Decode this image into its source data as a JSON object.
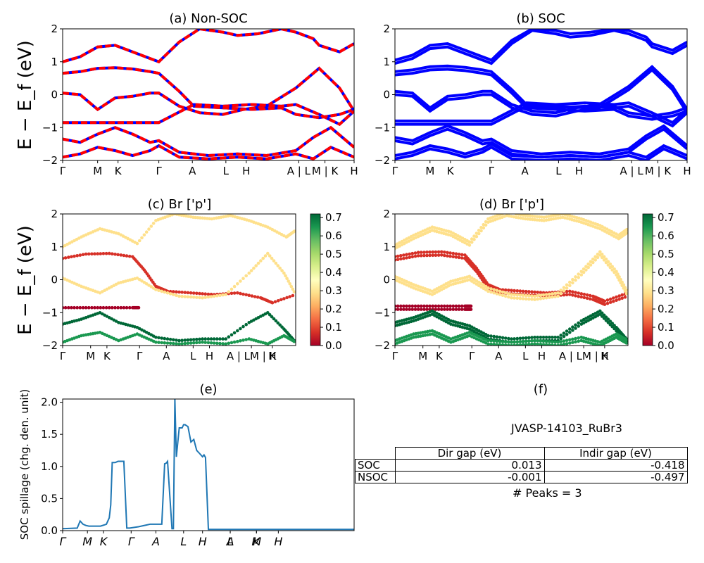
{
  "figure": {
    "ylabel_bands": "E − E_f (eV)",
    "kpath_labels": [
      "Γ",
      "M",
      "K",
      "Γ",
      "A",
      "L",
      "H",
      "A | L",
      "M | K",
      "H"
    ],
    "kpath_labels_c": [
      "Γ",
      "M",
      "K",
      "Γ",
      "A",
      "L",
      "H",
      "A | LM | K",
      "H"
    ],
    "kpath_labels_e": [
      "Γ",
      "M",
      "K",
      "Γ",
      "A",
      "L",
      "H",
      "A",
      "L",
      "M",
      "K",
      "H"
    ]
  },
  "panels": {
    "a": {
      "title": "(a) Non-SOC"
    },
    "b": {
      "title": "(b) SOC"
    },
    "c": {
      "title": "(c)  Br ['p']"
    },
    "d": {
      "title": "(d) Br ['p']"
    },
    "e": {
      "title": "(e)",
      "ylabel": "SOC spillage (chg. den. unit)"
    },
    "f": {
      "title": "(f)"
    }
  },
  "colors": {
    "nsoc_red": "#ff0000",
    "soc_blue": "#0000ff",
    "line": "#1f77b4"
  },
  "colorbar": {
    "ticks": [
      "0.0",
      "0.1",
      "0.2",
      "0.3",
      "0.4",
      "0.5",
      "0.6",
      "0.7"
    ],
    "colormap": "RdYlGn"
  },
  "info": {
    "material": "JVASP-14103_RuBr3",
    "table": {
      "headers": [
        "Dir gap (eV)",
        "Indir gap (eV)"
      ],
      "rows": [
        {
          "label": "SOC",
          "dir": "0.013",
          "indir": "-0.418"
        },
        {
          "label": "NSOC",
          "dir": "-0.001",
          "indir": "-0.497"
        }
      ]
    },
    "peaks": "# Peaks = 3"
  },
  "chart_data": [
    {
      "type": "line",
      "panel": "a",
      "ylim": [
        -2,
        2
      ],
      "yticks": [
        "−2",
        "−1",
        "0",
        "1",
        "2"
      ],
      "series": [
        {
          "name": "",
          "x": [
            0,
            0.06,
            0.12,
            0.18,
            0.24,
            0.3,
            0.33,
            0.4,
            0.47,
            0.55,
            0.6,
            0.67,
            0.75,
            0.8,
            0.86,
            0.88,
            0.95,
            1.0
          ],
          "y": [
            1.0,
            1.15,
            1.45,
            1.5,
            1.3,
            1.1,
            1.0,
            1.6,
            2.0,
            1.9,
            1.8,
            1.85,
            2.0,
            1.9,
            1.7,
            1.5,
            1.3,
            1.55
          ]
        },
        {
          "name": "",
          "x": [
            0,
            0.06,
            0.12,
            0.18,
            0.24,
            0.3,
            0.33,
            0.4,
            0.45,
            0.55,
            0.65,
            0.75,
            0.8,
            0.88,
            0.95,
            1.0
          ],
          "y": [
            0.65,
            0.7,
            0.8,
            0.82,
            0.78,
            0.7,
            0.65,
            0.1,
            -0.35,
            -0.4,
            -0.45,
            -0.4,
            -0.6,
            -0.7,
            -0.6,
            -0.45
          ]
        },
        {
          "name": "",
          "x": [
            0,
            0.06,
            0.12,
            0.18,
            0.24,
            0.3,
            0.33,
            0.4,
            0.47,
            0.55,
            0.62,
            0.7,
            0.8,
            0.88,
            0.95,
            1.0
          ],
          "y": [
            0.05,
            0.0,
            -0.45,
            -0.1,
            -0.05,
            0.05,
            0.05,
            -0.35,
            -0.55,
            -0.6,
            -0.45,
            -0.35,
            0.2,
            0.8,
            0.2,
            -0.5
          ]
        },
        {
          "name": "",
          "x": [
            0,
            0.1,
            0.2,
            0.3,
            0.33,
            0.45,
            0.55,
            0.65,
            0.75,
            0.8,
            0.88,
            0.95,
            1.0
          ],
          "y": [
            -0.85,
            -0.85,
            -0.85,
            -0.85,
            -0.85,
            -0.3,
            -0.35,
            -0.3,
            -0.35,
            -0.3,
            -0.6,
            -0.9,
            -0.5
          ]
        },
        {
          "name": "",
          "x": [
            0,
            0.06,
            0.12,
            0.18,
            0.24,
            0.3,
            0.33,
            0.4,
            0.5,
            0.6,
            0.7,
            0.8,
            0.86,
            0.92,
            1.0
          ],
          "y": [
            -1.35,
            -1.45,
            -1.2,
            -1.0,
            -1.2,
            -1.45,
            -1.4,
            -1.75,
            -1.85,
            -1.8,
            -1.85,
            -1.7,
            -1.3,
            -1.0,
            -1.6
          ]
        },
        {
          "name": "",
          "x": [
            0,
            0.06,
            0.12,
            0.18,
            0.24,
            0.3,
            0.33,
            0.4,
            0.5,
            0.6,
            0.7,
            0.8,
            0.86,
            0.92,
            1.0
          ],
          "y": [
            -1.9,
            -1.8,
            -1.6,
            -1.7,
            -1.85,
            -1.7,
            -1.55,
            -1.9,
            -1.95,
            -1.9,
            -1.95,
            -1.8,
            -1.95,
            -1.6,
            -1.9
          ]
        }
      ]
    },
    {
      "type": "line",
      "panel": "b",
      "ylim": [
        -2,
        2
      ],
      "yticks": [
        "−2",
        "−1",
        "0",
        "1",
        "2"
      ],
      "series": [
        {
          "name": "",
          "x": [
            0,
            0.06,
            0.12,
            0.18,
            0.24,
            0.3,
            0.33,
            0.4,
            0.47,
            0.55,
            0.6,
            0.67,
            0.75,
            0.8,
            0.86,
            0.88,
            0.95,
            1.0
          ],
          "y": [
            1.0,
            1.15,
            1.45,
            1.5,
            1.3,
            1.1,
            1.0,
            1.6,
            2.0,
            1.9,
            1.8,
            1.85,
            2.0,
            1.9,
            1.7,
            1.5,
            1.3,
            1.55
          ]
        },
        {
          "name": "",
          "x": [
            0,
            0.06,
            0.12,
            0.18,
            0.24,
            0.3,
            0.33,
            0.4,
            0.45,
            0.55,
            0.65,
            0.75,
            0.8,
            0.88,
            0.95,
            1.0
          ],
          "y": [
            0.65,
            0.7,
            0.8,
            0.82,
            0.78,
            0.7,
            0.65,
            0.1,
            -0.35,
            -0.4,
            -0.45,
            -0.4,
            -0.6,
            -0.7,
            -0.6,
            -0.45
          ]
        },
        {
          "name": "",
          "x": [
            0,
            0.06,
            0.12,
            0.18,
            0.24,
            0.3,
            0.33,
            0.4,
            0.47,
            0.55,
            0.62,
            0.7,
            0.8,
            0.88,
            0.95,
            1.0
          ],
          "y": [
            0.05,
            0.0,
            -0.45,
            -0.1,
            -0.05,
            0.05,
            0.05,
            -0.35,
            -0.55,
            -0.6,
            -0.45,
            -0.35,
            0.2,
            0.8,
            0.2,
            -0.5
          ]
        },
        {
          "name": "",
          "x": [
            0,
            0.1,
            0.2,
            0.3,
            0.33,
            0.45,
            0.55,
            0.65,
            0.75,
            0.8,
            0.88,
            0.95,
            1.0
          ],
          "y": [
            -0.85,
            -0.85,
            -0.85,
            -0.85,
            -0.85,
            -0.3,
            -0.35,
            -0.3,
            -0.35,
            -0.3,
            -0.6,
            -0.9,
            -0.5
          ]
        },
        {
          "name": "",
          "x": [
            0,
            0.06,
            0.12,
            0.18,
            0.24,
            0.3,
            0.33,
            0.4,
            0.5,
            0.6,
            0.7,
            0.8,
            0.86,
            0.92,
            1.0
          ],
          "y": [
            -1.35,
            -1.45,
            -1.2,
            -1.0,
            -1.2,
            -1.45,
            -1.4,
            -1.75,
            -1.85,
            -1.8,
            -1.85,
            -1.7,
            -1.3,
            -1.0,
            -1.6
          ]
        },
        {
          "name": "",
          "x": [
            0,
            0.06,
            0.12,
            0.18,
            0.24,
            0.3,
            0.33,
            0.4,
            0.5,
            0.6,
            0.7,
            0.8,
            0.86,
            0.92,
            1.0
          ],
          "y": [
            -1.9,
            -1.8,
            -1.6,
            -1.7,
            -1.85,
            -1.7,
            -1.55,
            -1.9,
            -1.95,
            -1.9,
            -1.95,
            -1.8,
            -1.95,
            -1.6,
            -1.9
          ]
        }
      ]
    },
    {
      "type": "scatter",
      "panel": "c",
      "ylim": [
        -2,
        2
      ],
      "yticks": [
        "−2",
        "−1",
        "0",
        "1",
        "2"
      ],
      "colorbar_range": [
        0.0,
        0.7
      ],
      "series": [
        {
          "name": "",
          "weight": 0.3,
          "x": [
            0,
            0.08,
            0.16,
            0.24,
            0.32,
            0.4,
            0.48,
            0.56,
            0.64,
            0.72,
            0.8,
            0.88,
            0.96,
            1.0
          ],
          "y": [
            1.0,
            1.3,
            1.55,
            1.4,
            1.1,
            1.8,
            2.0,
            1.9,
            1.85,
            1.95,
            1.8,
            1.6,
            1.3,
            1.5
          ]
        },
        {
          "name": "",
          "weight": 0.1,
          "x": [
            0,
            0.1,
            0.2,
            0.3,
            0.35,
            0.4,
            0.45,
            0.55,
            0.65,
            0.75,
            0.85,
            0.9,
            1.0
          ],
          "y": [
            0.65,
            0.78,
            0.8,
            0.7,
            0.3,
            -0.2,
            -0.35,
            -0.4,
            -0.45,
            -0.4,
            -0.55,
            -0.7,
            -0.45
          ]
        },
        {
          "name": "",
          "weight": 0.28,
          "x": [
            0,
            0.08,
            0.16,
            0.24,
            0.32,
            0.4,
            0.5,
            0.6,
            0.7,
            0.8,
            0.88,
            0.95,
            1.0
          ],
          "y": [
            0.05,
            -0.2,
            -0.4,
            -0.1,
            0.05,
            -0.3,
            -0.5,
            -0.55,
            -0.45,
            0.2,
            0.8,
            0.2,
            -0.45
          ]
        },
        {
          "name": "",
          "weight": 0.02,
          "x": [
            0,
            0.1,
            0.2,
            0.3,
            0.33
          ],
          "y": [
            -0.85,
            -0.85,
            -0.85,
            -0.85,
            -0.85
          ]
        },
        {
          "name": "",
          "weight": 0.68,
          "x": [
            0,
            0.08,
            0.16,
            0.24,
            0.32,
            0.4,
            0.5,
            0.6,
            0.7,
            0.8,
            0.88,
            0.95,
            1.0
          ],
          "y": [
            -1.35,
            -1.2,
            -1.0,
            -1.3,
            -1.45,
            -1.75,
            -1.85,
            -1.8,
            -1.8,
            -1.3,
            -1.0,
            -1.5,
            -1.9
          ]
        },
        {
          "name": "",
          "weight": 0.62,
          "x": [
            0,
            0.08,
            0.16,
            0.24,
            0.32,
            0.4,
            0.5,
            0.6,
            0.7,
            0.8,
            0.88,
            0.95,
            1.0
          ],
          "y": [
            -1.9,
            -1.7,
            -1.6,
            -1.85,
            -1.65,
            -1.9,
            -1.95,
            -1.9,
            -1.95,
            -1.8,
            -1.95,
            -1.7,
            -1.9
          ]
        }
      ]
    },
    {
      "type": "scatter",
      "panel": "d",
      "ylim": [
        -2,
        2
      ],
      "yticks": [
        "−2",
        "−1",
        "0",
        "1",
        "2"
      ],
      "colorbar_range": [
        0.0,
        0.7
      ],
      "series": [
        {
          "name": "",
          "weight": 0.3,
          "x": [
            0,
            0.08,
            0.16,
            0.24,
            0.32,
            0.4,
            0.48,
            0.56,
            0.64,
            0.72,
            0.8,
            0.88,
            0.96,
            1.0
          ],
          "y": [
            1.0,
            1.3,
            1.55,
            1.4,
            1.1,
            1.8,
            2.0,
            1.9,
            1.85,
            1.95,
            1.8,
            1.6,
            1.3,
            1.5
          ]
        },
        {
          "name": "",
          "weight": 0.1,
          "x": [
            0,
            0.1,
            0.2,
            0.3,
            0.35,
            0.4,
            0.45,
            0.55,
            0.65,
            0.75,
            0.85,
            0.9,
            1.0
          ],
          "y": [
            0.65,
            0.78,
            0.8,
            0.7,
            0.3,
            -0.2,
            -0.35,
            -0.4,
            -0.45,
            -0.4,
            -0.55,
            -0.7,
            -0.45
          ]
        },
        {
          "name": "",
          "weight": 0.28,
          "x": [
            0,
            0.08,
            0.16,
            0.24,
            0.32,
            0.4,
            0.5,
            0.6,
            0.7,
            0.8,
            0.88,
            0.95,
            1.0
          ],
          "y": [
            0.05,
            -0.2,
            -0.4,
            -0.1,
            0.05,
            -0.3,
            -0.5,
            -0.55,
            -0.45,
            0.2,
            0.8,
            0.2,
            -0.45
          ]
        },
        {
          "name": "",
          "weight": 0.02,
          "x": [
            0,
            0.1,
            0.2,
            0.3,
            0.33
          ],
          "y": [
            -0.85,
            -0.85,
            -0.85,
            -0.85,
            -0.85
          ]
        },
        {
          "name": "",
          "weight": 0.68,
          "x": [
            0,
            0.08,
            0.16,
            0.24,
            0.32,
            0.4,
            0.5,
            0.6,
            0.7,
            0.8,
            0.88,
            0.95,
            1.0
          ],
          "y": [
            -1.35,
            -1.2,
            -1.0,
            -1.3,
            -1.45,
            -1.75,
            -1.85,
            -1.8,
            -1.8,
            -1.3,
            -1.0,
            -1.5,
            -1.9
          ]
        },
        {
          "name": "",
          "weight": 0.62,
          "x": [
            0,
            0.08,
            0.16,
            0.24,
            0.32,
            0.4,
            0.5,
            0.6,
            0.7,
            0.8,
            0.88,
            0.95,
            1.0
          ],
          "y": [
            -1.9,
            -1.7,
            -1.6,
            -1.85,
            -1.65,
            -1.9,
            -1.95,
            -1.9,
            -1.95,
            -1.8,
            -1.95,
            -1.7,
            -1.9
          ]
        }
      ]
    },
    {
      "type": "line",
      "panel": "e",
      "ylabel": "SOC spillage (chg. den. unit)",
      "ylim": [
        0,
        2.05
      ],
      "yticks": [
        "0.0",
        "0.5",
        "1.0",
        "1.5",
        "2.0"
      ],
      "series": [
        {
          "name": "",
          "x": [
            0,
            0.05,
            0.06,
            0.07,
            0.08,
            0.09,
            0.11,
            0.13,
            0.15,
            0.16,
            0.165,
            0.17,
            0.18,
            0.185,
            0.19,
            0.21,
            0.22,
            0.225,
            0.23,
            0.26,
            0.3,
            0.34,
            0.35,
            0.355,
            0.36,
            0.375,
            0.38,
            0.385,
            0.39,
            0.4,
            0.405,
            0.41,
            0.415,
            0.42,
            0.43,
            0.44,
            0.45,
            0.46,
            0.47,
            0.48,
            0.485,
            0.49,
            0.5,
            0.51,
            0.52,
            1.0
          ],
          "y": [
            0.03,
            0.04,
            0.15,
            0.1,
            0.08,
            0.07,
            0.07,
            0.07,
            0.1,
            0.2,
            0.4,
            1.06,
            1.06,
            1.07,
            1.08,
            1.08,
            0.04,
            0.04,
            0.04,
            0.06,
            0.1,
            0.1,
            1.04,
            1.05,
            1.08,
            0.03,
            0.03,
            2.05,
            1.15,
            1.6,
            1.6,
            1.6,
            1.65,
            1.65,
            1.62,
            1.38,
            1.42,
            1.25,
            1.2,
            1.15,
            1.18,
            1.14,
            0.02,
            0.02,
            0.02,
            0.02
          ]
        }
      ]
    }
  ]
}
